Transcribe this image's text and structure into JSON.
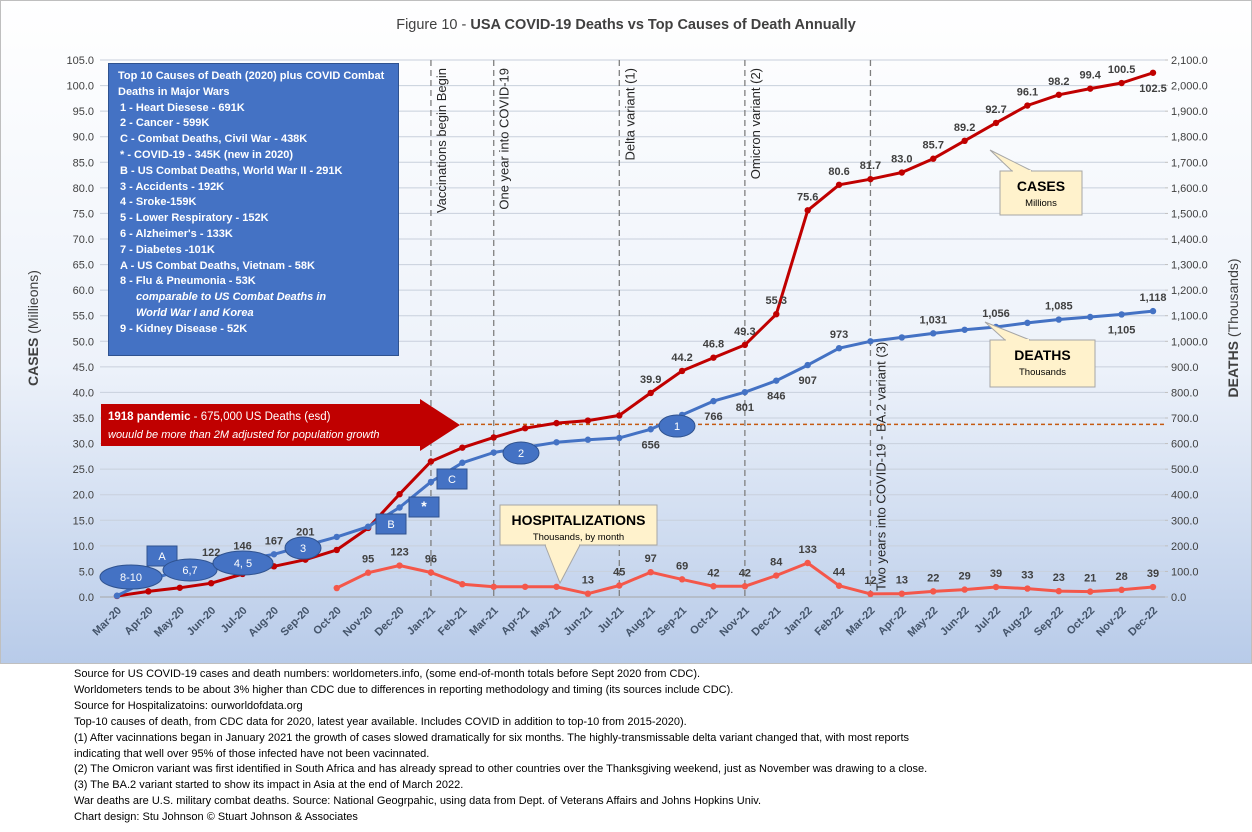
{
  "chart_data": {
    "type": "line",
    "figure_label": "Figure 10 - ",
    "title": "USA COVID-19 Deaths vs Top Causes of Death Annually",
    "y_label": "CASES",
    "y_label_unit": "(Millieons)",
    "y2_label": "DEATHS",
    "y2_label_unit": "(Thousands)",
    "categories": [
      "Mar-20",
      "Apr-20",
      "May-20",
      "Jun-20",
      "Jul-20",
      "Aug-20",
      "Sep-20",
      "Oct-20",
      "Nov-20",
      "Dec-20",
      "Jan-21",
      "Feb-21",
      "Mar-21",
      "Apr-21",
      "May-21",
      "Jun-21",
      "Jul-21",
      "Aug-21",
      "Sep-21",
      "Oct-21",
      "Nov-21",
      "Dec-21",
      "Jan-22",
      "Feb-22",
      "Mar-22",
      "Apr-22",
      "May-22",
      "Jun-22",
      "Jul-22",
      "Aug-22",
      "Sep-22",
      "Oct-22",
      "Nov-22",
      "Dec-22"
    ],
    "ylim": [
      0,
      105
    ],
    "yticks": [
      {
        "value": 0,
        "label": "0.0"
      },
      {
        "value": 5,
        "label": "5.0"
      },
      {
        "value": 10,
        "label": "10.0"
      },
      {
        "value": 15,
        "label": "15.0"
      },
      {
        "value": 20,
        "label": "20.0"
      },
      {
        "value": 25,
        "label": "25.0"
      },
      {
        "value": 30,
        "label": "30.0"
      },
      {
        "value": 35,
        "label": "35.0"
      },
      {
        "value": 40,
        "label": "40.0"
      },
      {
        "value": 45,
        "label": "45.0"
      },
      {
        "value": 50,
        "label": "50.0"
      },
      {
        "value": 55,
        "label": "55.0"
      },
      {
        "value": 60,
        "label": "60.0"
      },
      {
        "value": 65,
        "label": "65.0"
      },
      {
        "value": 70,
        "label": "70.0"
      },
      {
        "value": 75,
        "label": "75.0"
      },
      {
        "value": 80,
        "label": "80.0"
      },
      {
        "value": 85,
        "label": "85.0"
      },
      {
        "value": 90,
        "label": "90.0"
      },
      {
        "value": 95,
        "label": "95.0"
      },
      {
        "value": 100,
        "label": "100.0"
      },
      {
        "value": 105,
        "label": "105.0"
      }
    ],
    "y2lim": [
      0,
      2100
    ],
    "y2ticks": [
      {
        "value": 0,
        "label": "0.0"
      },
      {
        "value": 100,
        "label": "100.0"
      },
      {
        "value": 200,
        "label": "200.0"
      },
      {
        "value": 300,
        "label": "300.0"
      },
      {
        "value": 400,
        "label": "400.0"
      },
      {
        "value": 500,
        "label": "500.0"
      },
      {
        "value": 600,
        "label": "600.0"
      },
      {
        "value": 700,
        "label": "700.0"
      },
      {
        "value": 800,
        "label": "800.0"
      },
      {
        "value": 900,
        "label": "900.0"
      },
      {
        "value": 1000,
        "label": "1,000.0"
      },
      {
        "value": 1100,
        "label": "1,100.0"
      },
      {
        "value": 1200,
        "label": "1,200.0"
      },
      {
        "value": 1300,
        "label": "1,300.0"
      },
      {
        "value": 1400,
        "label": "1,400.0"
      },
      {
        "value": 1500,
        "label": "1,500.0"
      },
      {
        "value": 1600,
        "label": "1,600.0"
      },
      {
        "value": 1700,
        "label": "1,700.0"
      },
      {
        "value": 1800,
        "label": "1,800.0"
      },
      {
        "value": 1900,
        "label": "1,900.0"
      },
      {
        "value": 2000,
        "label": "2,000.0"
      },
      {
        "value": 2100,
        "label": "2,100.0"
      }
    ],
    "grid": true,
    "series": [
      {
        "name": "CASES",
        "unit": "Millions",
        "color": "#c00000",
        "axis": "y",
        "values": [
          0.2,
          1.1,
          1.8,
          2.7,
          4.5,
          6.0,
          7.3,
          9.2,
          13.5,
          20.1,
          26.5,
          29.2,
          31.2,
          33.0,
          34.0,
          34.5,
          35.5,
          39.9,
          44.2,
          46.8,
          49.3,
          55.3,
          75.6,
          80.6,
          81.7,
          83.0,
          85.7,
          89.2,
          92.7,
          96.1,
          98.2,
          99.4,
          100.5,
          102.5
        ],
        "value_labels": [
          null,
          null,
          null,
          null,
          null,
          null,
          null,
          null,
          null,
          null,
          null,
          null,
          null,
          null,
          null,
          null,
          null,
          "39.9",
          "44.2",
          "46.8",
          "49.3",
          "55.3",
          "75.6",
          "80.6",
          "81.7",
          "83.0",
          "85.7",
          "89.2",
          "92.7",
          "96.1",
          "98.2",
          "99.4",
          "100.5",
          "102.5"
        ]
      },
      {
        "name": "DEATHS",
        "unit": "Thousands",
        "color": "#4472c4",
        "axis": "y2",
        "values": [
          5,
          65,
          105,
          122,
          146,
          167,
          201,
          235,
          275,
          350,
          450,
          525,
          565,
          585,
          605,
          615,
          622,
          656,
          712,
          766,
          801,
          846,
          907,
          973,
          1000,
          1015,
          1031,
          1045,
          1056,
          1072,
          1085,
          1095,
          1105,
          1118
        ],
        "value_labels": [
          null,
          null,
          null,
          "122",
          "146",
          "167",
          "201",
          null,
          null,
          null,
          null,
          null,
          null,
          null,
          null,
          null,
          null,
          "656",
          null,
          "766",
          "801",
          "846",
          "907",
          "973",
          null,
          null,
          "1,031",
          null,
          "1,056",
          null,
          "1,085",
          null,
          "1,105",
          "1,118"
        ]
      },
      {
        "name": "HOSPITALIZATIONS",
        "unit": "Thousands, by month",
        "color": "#f4574a",
        "axis": "y2",
        "values": [
          null,
          null,
          null,
          null,
          null,
          null,
          null,
          35,
          95,
          123,
          96,
          50,
          40,
          40,
          40,
          13,
          45,
          97,
          69,
          42,
          42,
          84,
          133,
          44,
          12,
          13,
          22,
          29,
          39,
          33,
          23,
          21,
          28,
          39
        ],
        "value_labels": [
          null,
          null,
          null,
          null,
          null,
          null,
          null,
          null,
          "95",
          "123",
          "96",
          null,
          null,
          null,
          null,
          "13",
          "45",
          "97",
          "69",
          "42",
          "42",
          "84",
          "133",
          "44",
          "12",
          "13",
          "22",
          "29",
          "39",
          "33",
          "23",
          "21",
          "28",
          "39"
        ]
      }
    ],
    "events": [
      {
        "at": "Jan-21",
        "label": "Vaccinations begin Begin"
      },
      {
        "at": "Mar-21",
        "label": "One year into COVID-19"
      },
      {
        "at": "Jul-21",
        "label": "Delta variant (1)"
      },
      {
        "at": "Nov-21",
        "label": "Omicron variant (2)"
      },
      {
        "at": "Mar-22",
        "label": "Two years into COVID-19  -  BA.2 variant (3)"
      }
    ],
    "reference_line": {
      "value": 675,
      "axis": "y2",
      "label": "1918 pandemic",
      "label_detail": " - 675,000 US Deaths (esd)",
      "note": "wouuld be more than 2M adjusted for population growth"
    },
    "markers": [
      {
        "label": "8-10",
        "shape": "ellipse"
      },
      {
        "label": "A",
        "shape": "square"
      },
      {
        "label": "6,7",
        "shape": "ellipse"
      },
      {
        "label": "4, 5",
        "shape": "ellipse"
      },
      {
        "label": "3",
        "shape": "ellipse"
      },
      {
        "label": "B",
        "shape": "square"
      },
      {
        "label": "*",
        "shape": "square"
      },
      {
        "label": "C",
        "shape": "square"
      },
      {
        "label": "2",
        "shape": "ellipse"
      },
      {
        "label": "1",
        "shape": "ellipse"
      }
    ],
    "legend_box": {
      "title": "Top 10 Causes of Death (2020) plus COVID Combat Deaths in Major Wars",
      "items": [
        {
          "text": "1 - Heart Diesese - 691K"
        },
        {
          "text": "2 - Cancer - 599K"
        },
        {
          "text": "C - Combat Deaths, Civil War - 438K"
        },
        {
          "text": "* - COVID-19 - 345K  (new in 2020)"
        },
        {
          "text": "B - US Combat Deaths, World War II - 291K"
        },
        {
          "text": "3 - Accidents - 192K"
        },
        {
          "text": "4 - Sroke-159K"
        },
        {
          "text": "5 - Lower Respiratory - 152K"
        },
        {
          "text": "6 - Alzheimer's - 133K"
        },
        {
          "text": "7 - Diabetes -101K"
        },
        {
          "text": "A - US Combat Deaths, Vietnam - 58K"
        },
        {
          "text": "8 - Flu & Pneumonia - 53K",
          "note": [
            "comparable to US Combat Deaths in",
            "World War I and Korea"
          ]
        },
        {
          "text": "9 - Kidney Disease - 52K"
        }
      ]
    }
  },
  "footnotes": [
    "Source for US COVID-19 cases and death numbers: worldometers.info, (some end-of-month totals before Sept 2020 from CDC).",
    "Worldometers tends to be about 3% higher than CDC due to differences in reporting methodology and timing (its sources include CDC).",
    "Source for Hospitalizatoins: ourworldofdata.org",
    "Top-10 causes of death, from CDC data for 2020, latest year available.  Includes COVID in addition to top-10 from 2015-2020).",
    "(1) After vacinnations began in January 2021 the growth of cases slowed dramatically for six months. The highly-transmissable delta variant changed that, with most reports",
    "indicating that well over 95% of those infected have not been vacinnated.",
    "(2) The Omicron variant was first identified in South Africa and has already spread to other countries over the Thanksgiving weekend, just as November was drawing to a close.",
    "(3) The BA.2 variant started to show its impact in Asia at the end of March 2022.",
    "War deaths are U.S. military combat deaths.  Source: National Geogrpahic, using data from Dept. of Veterans Affairs and Johns Hopkins Univ.",
    "Chart design: Stu Johnson © Stuart Johnson & Associates"
  ]
}
